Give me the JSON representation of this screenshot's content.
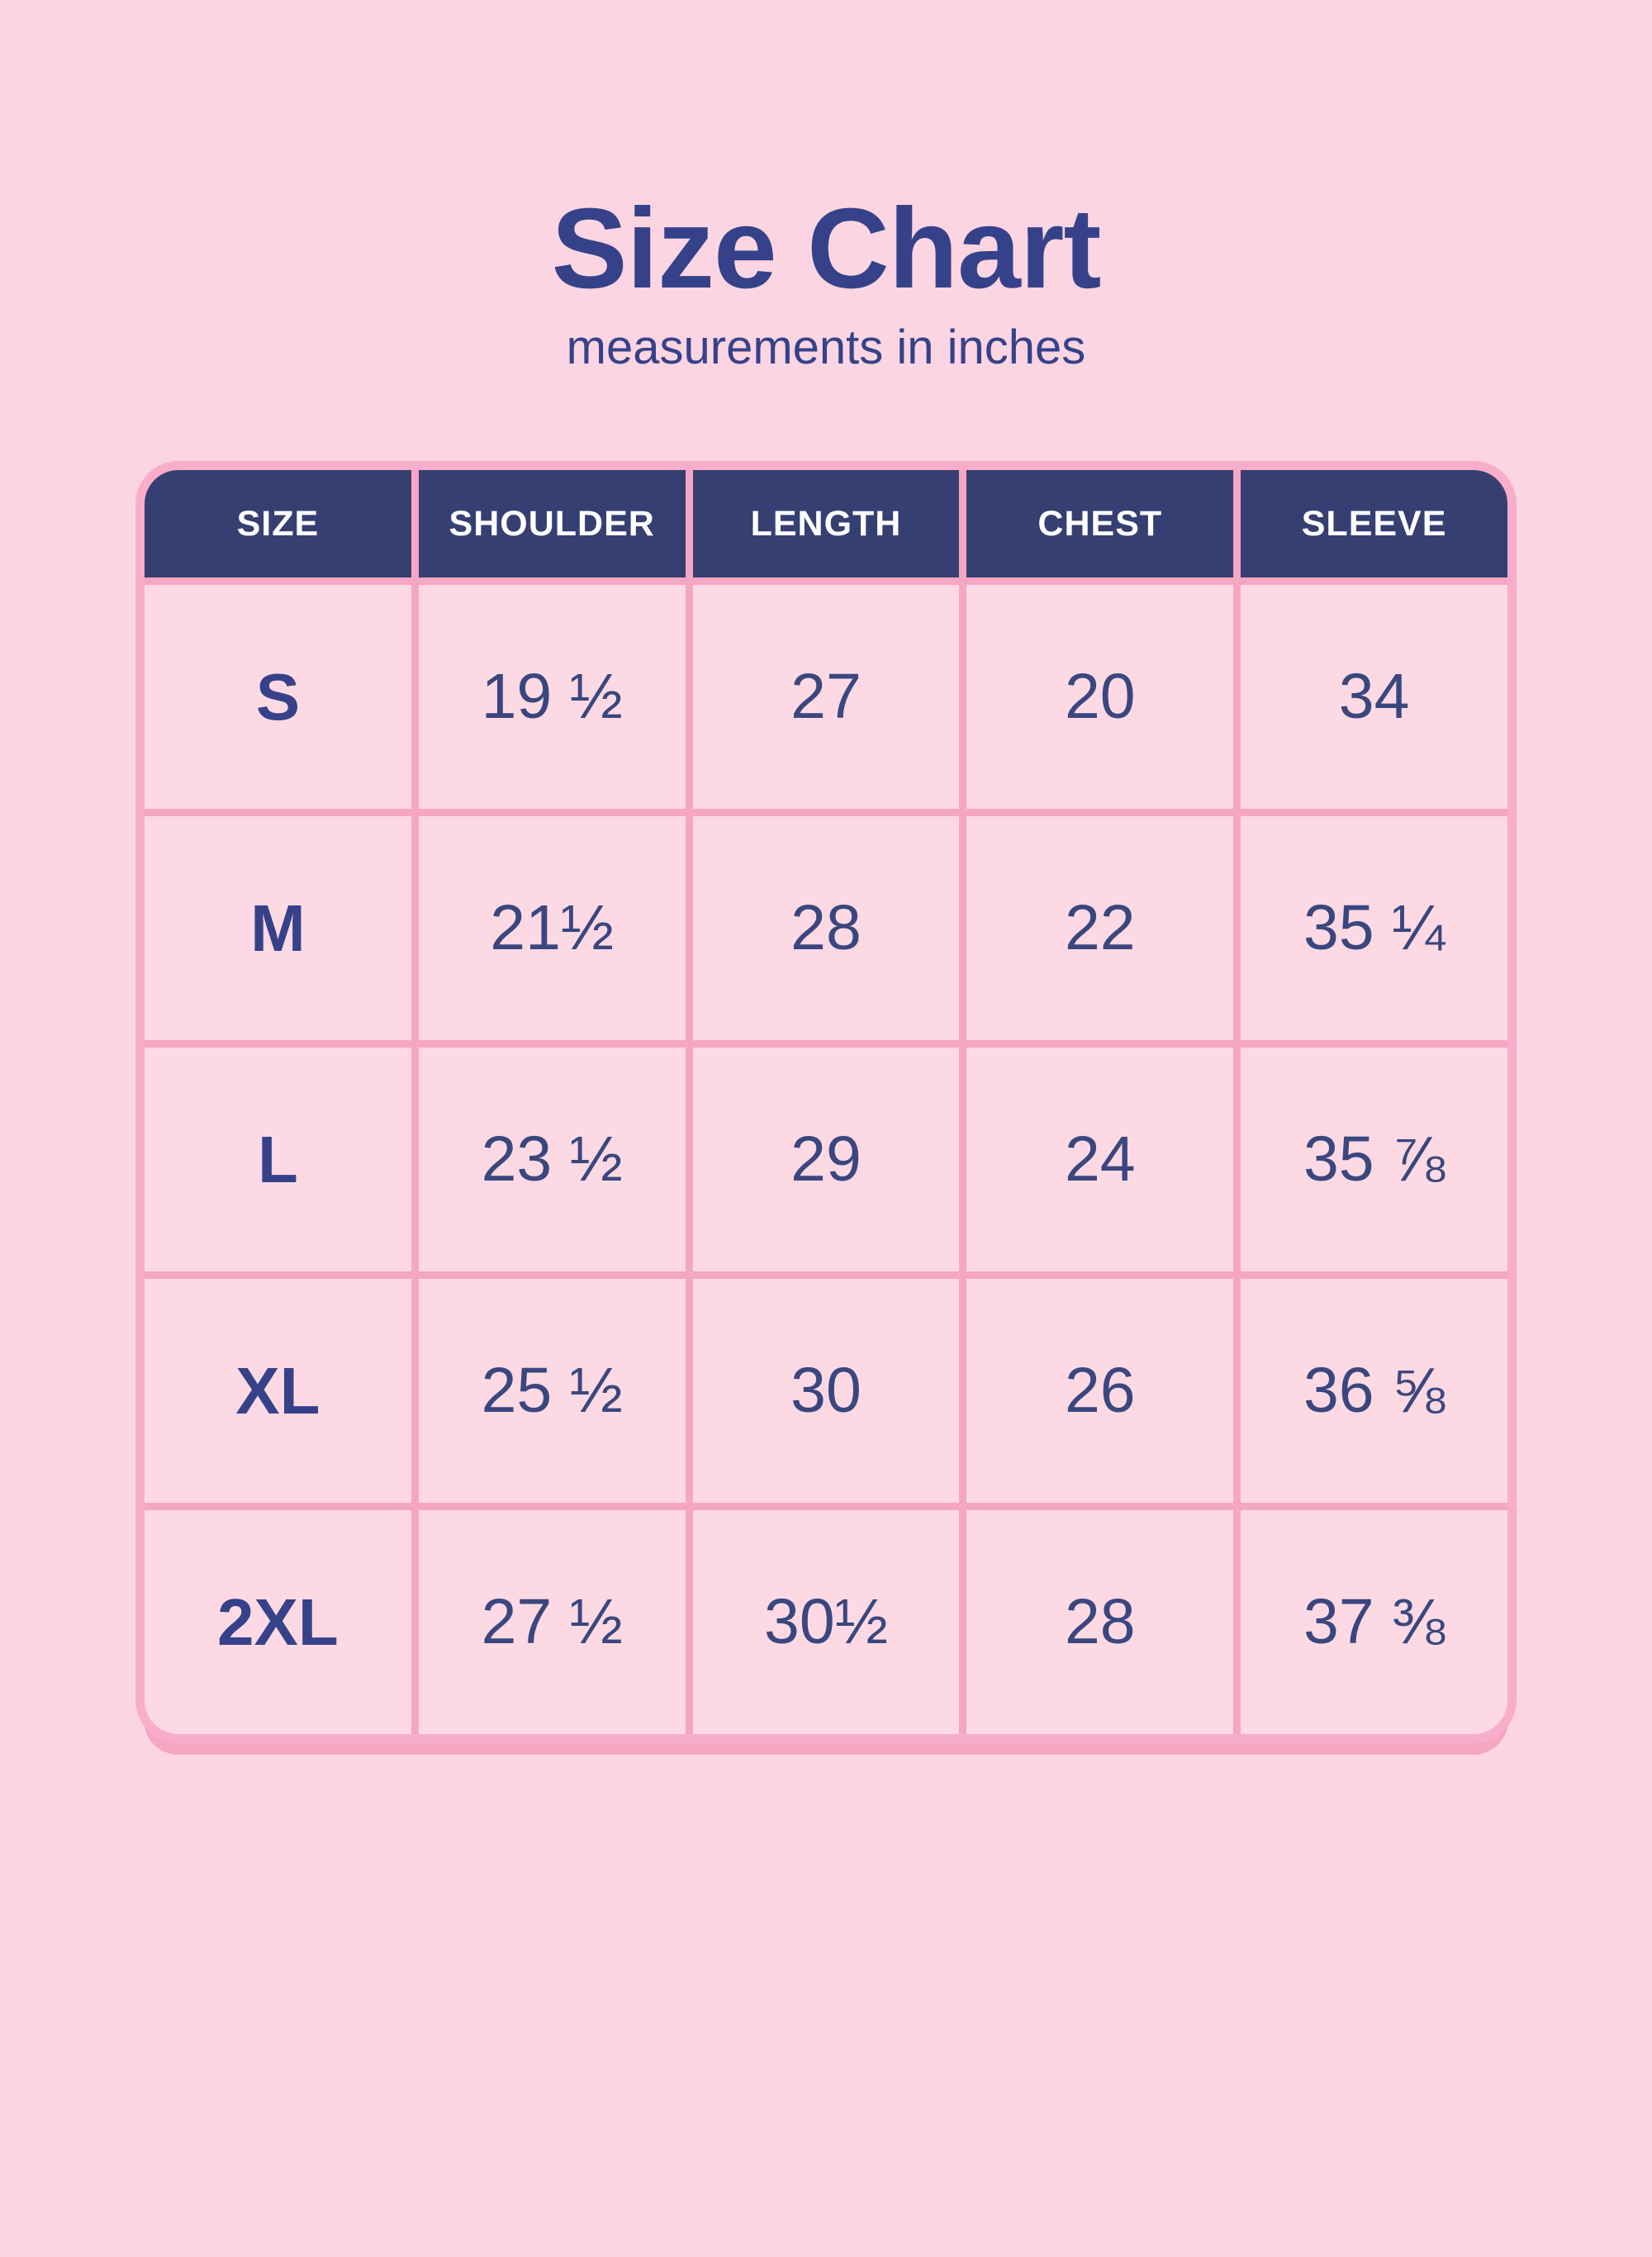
{
  "page": {
    "title": "Size Chart",
    "subtitle": "measurements in inches"
  },
  "colors": {
    "page_background": "#fbd5e1",
    "cell_background": "#fdd9e3",
    "grid_line_pink": "#f5a6c3",
    "outer_border_pink": "#f8aeca",
    "header_navy": "#353f72",
    "title_navy": "#35428a",
    "cell_text_navy": "#3a477f",
    "header_text": "#ffffff"
  },
  "table": {
    "columns": [
      "SIZE",
      "SHOULDER",
      "LENGTH",
      "CHEST",
      "SLEEVE"
    ],
    "rows": [
      [
        "S",
        "19 ½",
        "27",
        "20",
        "34"
      ],
      [
        "M",
        "21½",
        "28",
        "22",
        "35 ¼"
      ],
      [
        "L",
        "23 ½",
        "29",
        "24",
        "35 ⅞"
      ],
      [
        "XL",
        "25 ½",
        "30",
        "26",
        "36 ⅝"
      ],
      [
        "2XL",
        "27 ½",
        "30½",
        "28",
        "37 ⅜"
      ]
    ]
  },
  "chart_data": {
    "type": "table",
    "title": "Size Chart",
    "subtitle": "measurements in inches",
    "units": "inches",
    "columns": [
      "SIZE",
      "SHOULDER",
      "LENGTH",
      "CHEST",
      "SLEEVE"
    ],
    "rows": [
      [
        "S",
        "19 ½",
        "27",
        "20",
        "34"
      ],
      [
        "M",
        "21½",
        "28",
        "22",
        "35 ¼"
      ],
      [
        "L",
        "23 ½",
        "29",
        "24",
        "35 ⅞"
      ],
      [
        "XL",
        "25 ½",
        "30",
        "26",
        "36 ⅝"
      ],
      [
        "2XL",
        "27 ½",
        "30½",
        "28",
        "37 ⅜"
      ]
    ],
    "numeric_values": {
      "sizes": [
        "S",
        "M",
        "L",
        "XL",
        "2XL"
      ],
      "shoulder": [
        19.5,
        21.5,
        23.5,
        25.5,
        27.5
      ],
      "length": [
        27,
        28,
        29,
        30,
        30.5
      ],
      "chest": [
        20,
        22,
        24,
        26,
        28
      ],
      "sleeve": [
        34,
        35.25,
        35.875,
        36.625,
        37.375
      ]
    },
    "layout": {
      "header_position": "top",
      "grid": true,
      "corner_style": "rounded"
    }
  }
}
